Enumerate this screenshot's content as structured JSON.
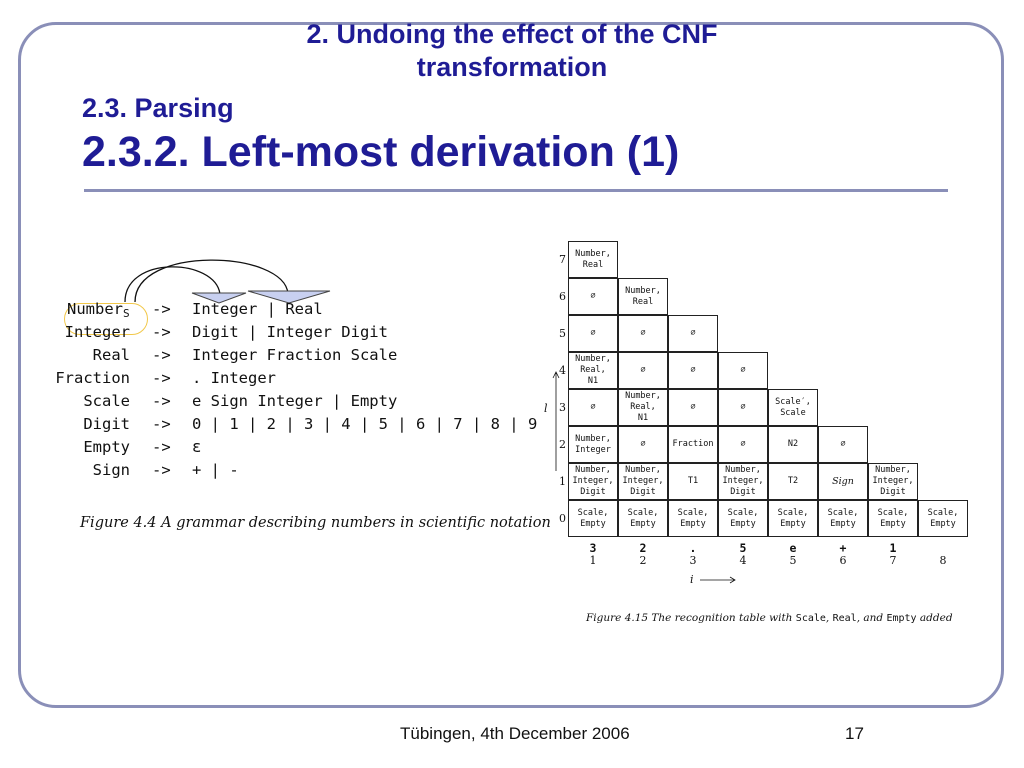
{
  "slide": {
    "title_line1": "2. Undoing the effect of the CNF",
    "title_line2": "transformation",
    "section": "2.3. Parsing",
    "subsection": "2.3.2. Left-most derivation (1)"
  },
  "grammar": {
    "rules": [
      {
        "lhs": "Number",
        "lhs_sub": "S",
        "arrow": "->",
        "rhs": "Integer | Real"
      },
      {
        "lhs": "Integer",
        "lhs_sub": "",
        "arrow": "->",
        "rhs": "Digit | Integer Digit"
      },
      {
        "lhs": "Real",
        "lhs_sub": "",
        "arrow": "->",
        "rhs": "Integer Fraction Scale"
      },
      {
        "lhs": "Fraction",
        "lhs_sub": "",
        "arrow": "->",
        "rhs": ". Integer"
      },
      {
        "lhs": "Scale",
        "lhs_sub": "",
        "arrow": "->",
        "rhs": "e Sign Integer | Empty"
      },
      {
        "lhs": "Digit",
        "lhs_sub": "",
        "arrow": "->",
        "rhs": "0 | 1 | 2 | 3 | 4 | 5 | 6 | 7 | 8 | 9"
      },
      {
        "lhs": "Empty",
        "lhs_sub": "",
        "arrow": "->",
        "rhs": "ε"
      },
      {
        "lhs": "Sign",
        "lhs_sub": "",
        "arrow": "->",
        "rhs": "+ | -"
      }
    ],
    "caption": "Figure 4.4  A grammar describing numbers in scientific notation"
  },
  "recognition_table": {
    "row_labels": [
      "7",
      "6",
      "5",
      "4",
      "3",
      "2",
      "1",
      "0"
    ],
    "rows": {
      "7": [
        "Number,\nReal"
      ],
      "6": [
        "∅",
        "Number,\nReal"
      ],
      "5": [
        "∅",
        "∅",
        "∅"
      ],
      "4": [
        "Number,\nReal,\nN1",
        "∅",
        "∅",
        "∅"
      ],
      "3": [
        "∅",
        "Number,\nReal,\nN1",
        "∅",
        "∅",
        "Scale′,\nScale"
      ],
      "2": [
        "Number,\nInteger",
        "∅",
        "Fraction",
        "∅",
        "N2",
        "∅"
      ],
      "1": [
        "Number,\nInteger,\nDigit",
        "Number,\nInteger,\nDigit",
        "T1",
        "Number,\nInteger,\nDigit",
        "T2",
        "Sign",
        "Number,\nInteger,\nDigit"
      ],
      "0": [
        "Scale,\nEmpty",
        "Scale,\nEmpty",
        "Scale,\nEmpty",
        "Scale,\nEmpty",
        "Scale,\nEmpty",
        "Scale,\nEmpty",
        "Scale,\nEmpty",
        "Scale,\nEmpty"
      ]
    },
    "italic_cells": [
      "Sign"
    ],
    "tokens": [
      "3",
      "2",
      ".",
      "5",
      "e",
      "+",
      "1",
      ""
    ],
    "positions": [
      "1",
      "2",
      "3",
      "4",
      "5",
      "6",
      "7",
      "8"
    ],
    "l_label": "l",
    "i_label": "i",
    "caption_prefix": "Figure 4.15  The recognition table with ",
    "caption_m1": "Scale",
    "caption_sep1": ", ",
    "caption_m2": "Real",
    "caption_sep2": ", and ",
    "caption_m3": "Empty",
    "caption_suffix": " added"
  },
  "footer": {
    "text": "Tübingen, 4th December 2006",
    "page": "17"
  },
  "colors": {
    "title": "#1f1c95",
    "frame": "#8a8fb8",
    "highlight": "#f2c84a",
    "arrow_fill": "#c8d0f0"
  }
}
